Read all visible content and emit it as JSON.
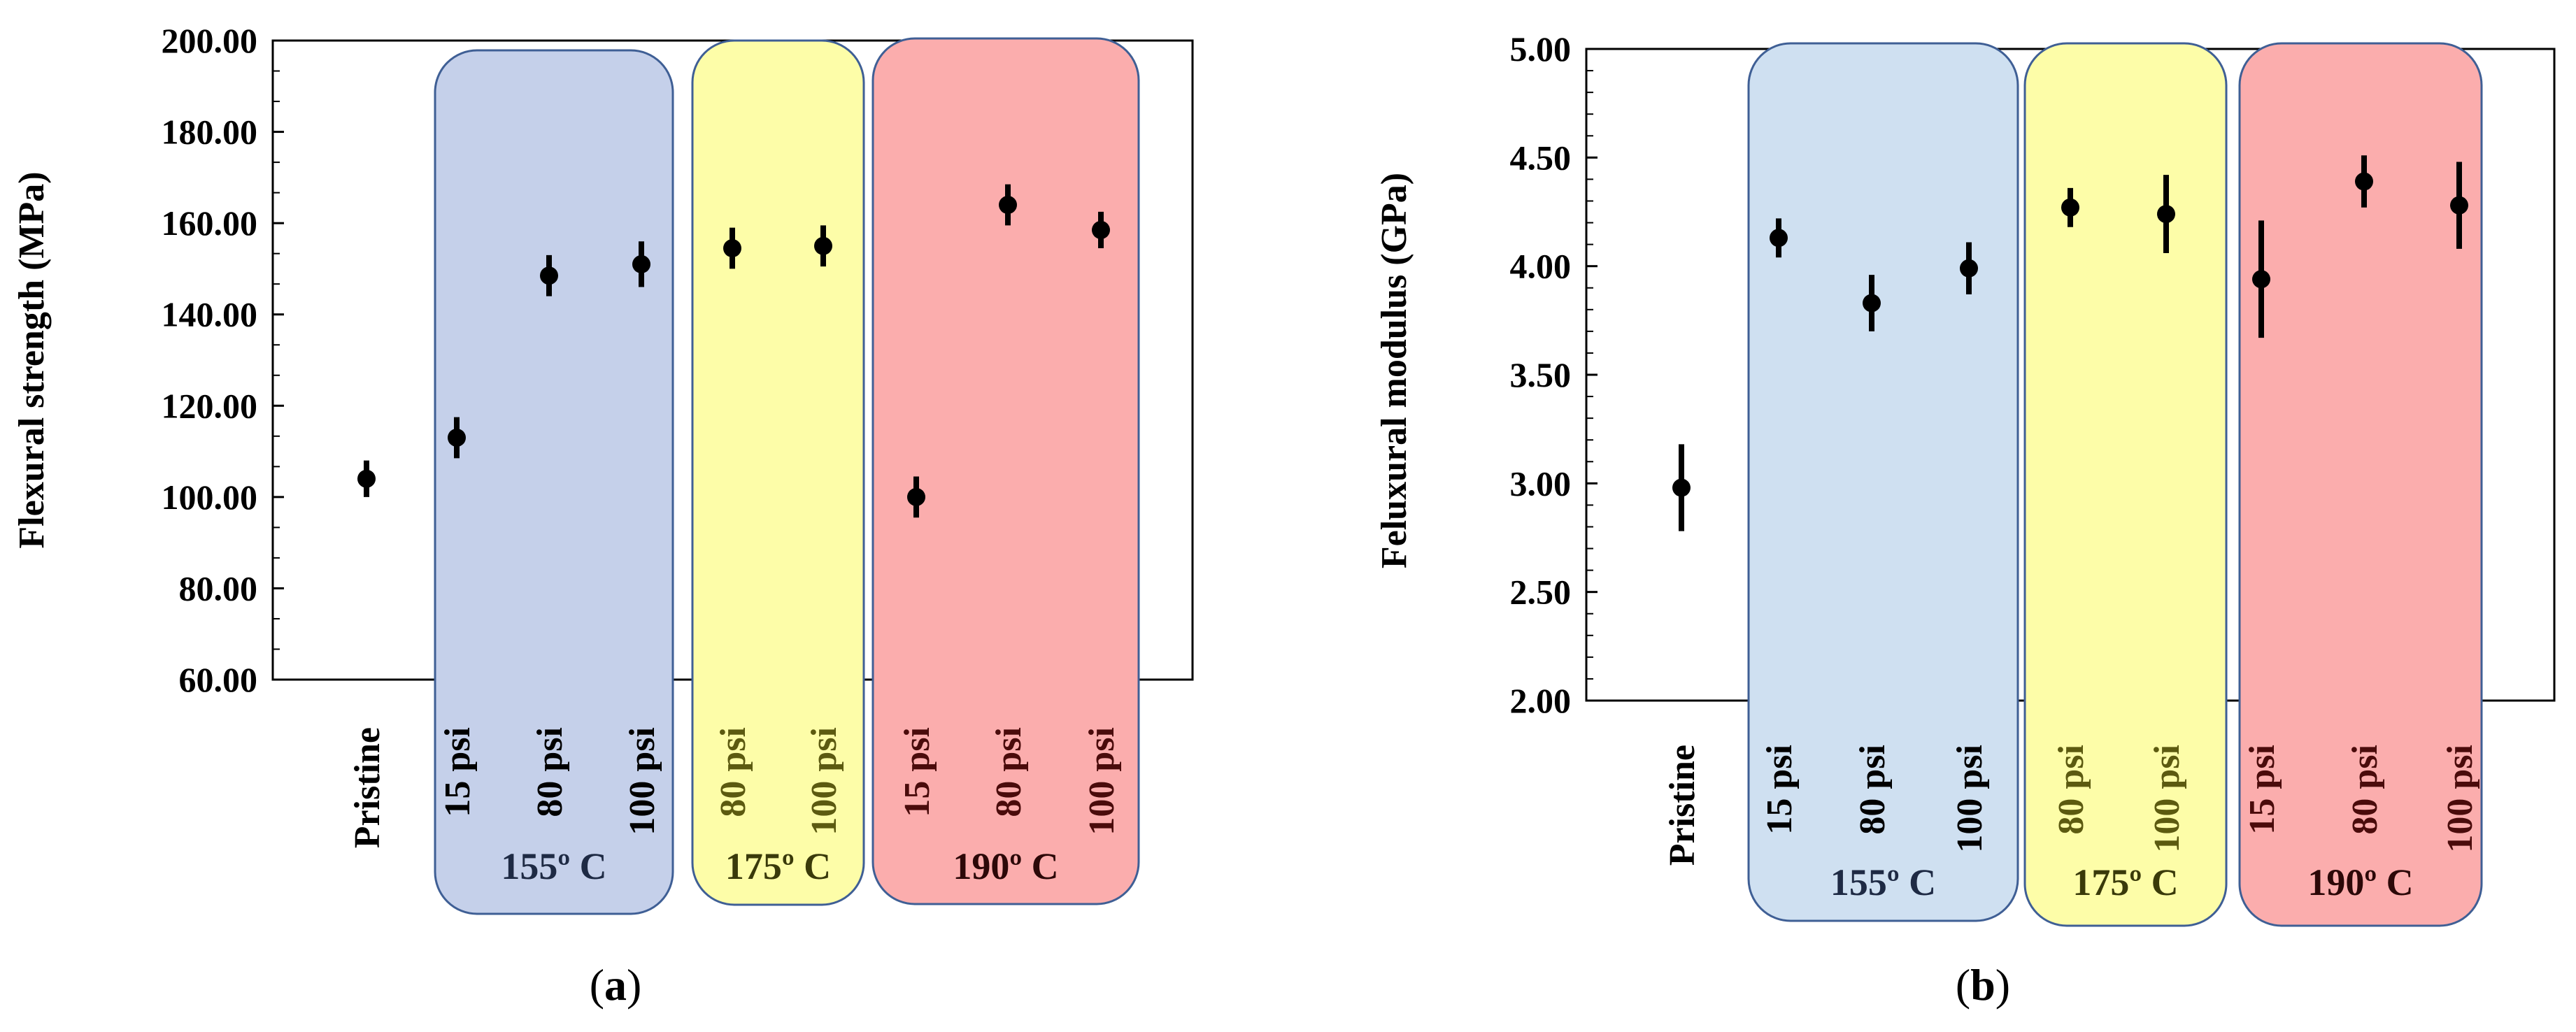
{
  "chart_data": [
    {
      "type": "scatter",
      "panel_label": "a",
      "ylabel": "Flexural strength (MPa)",
      "ylim": [
        60,
        200
      ],
      "y_ticks": [
        "200.00",
        "180.00",
        "160.00",
        "140.00",
        "120.00",
        "100.00",
        "80.00",
        "60.00"
      ],
      "categories": [
        "Pristine",
        "15 psi",
        "80 psi",
        "100 psi",
        "80 psi",
        "100 psi",
        "15 psi",
        "80 psi",
        "100 psi"
      ],
      "groups": [
        {
          "label": "155º C",
          "color": "#c5d0ea",
          "members": [
            1,
            2,
            3
          ]
        },
        {
          "label": "175º C",
          "color": "#fdfda8",
          "members": [
            4,
            5
          ]
        },
        {
          "label": "190º C",
          "color": "#fbadad",
          "members": [
            6,
            7,
            8
          ]
        }
      ],
      "values": [
        104,
        113,
        148.5,
        151,
        154.5,
        155,
        100,
        164,
        158.5
      ],
      "errors": [
        4,
        4.5,
        4.5,
        5,
        4.5,
        4.5,
        4.5,
        4.5,
        4
      ],
      "grid": false,
      "legend": "none"
    },
    {
      "type": "scatter",
      "panel_label": "b",
      "ylabel": "Feluxural modulus (GPa)",
      "ylim": [
        2.0,
        5.0
      ],
      "y_ticks": [
        "5.00",
        "4.50",
        "4.00",
        "3.50",
        "3.00",
        "2.50",
        "2.00"
      ],
      "categories": [
        "Pristine",
        "15 psi",
        "80 psi",
        "100 psi",
        "80 psi",
        "100 psi",
        "15 psi",
        "80 psi",
        "100 psi"
      ],
      "groups": [
        {
          "label": "155º C",
          "color": "#cfe0f1",
          "members": [
            1,
            2,
            3
          ]
        },
        {
          "label": "175º C",
          "color": "#fdfda8",
          "members": [
            4,
            5
          ]
        },
        {
          "label": "190º C",
          "color": "#fbadad",
          "members": [
            6,
            7,
            8
          ]
        }
      ],
      "values": [
        2.98,
        4.13,
        3.83,
        3.99,
        4.27,
        4.24,
        3.94,
        4.39,
        4.28
      ],
      "errors": [
        0.2,
        0.09,
        0.13,
        0.12,
        0.09,
        0.18,
        0.27,
        0.12,
        0.2
      ],
      "grid": false,
      "legend": "none"
    }
  ],
  "style": {
    "marker_color": "#000000",
    "group_stroke": "#3f5f95",
    "cat_color_default": "#000000",
    "cat_color_175": "#5c5a10",
    "cat_color_190": "#4a0b0b"
  }
}
